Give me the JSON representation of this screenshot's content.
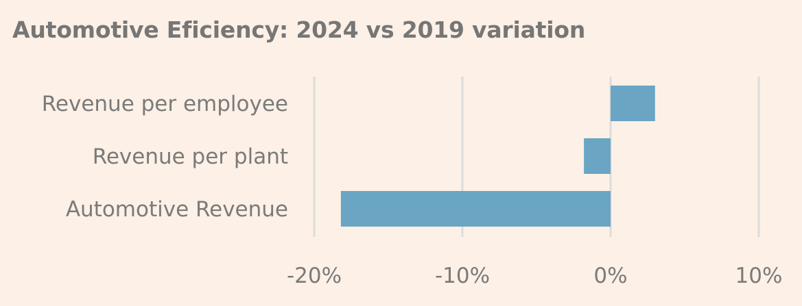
{
  "chart_data": {
    "type": "bar",
    "orientation": "horizontal",
    "title": "Automotive Eficiency: 2024 vs 2019 variation",
    "categories": [
      "Revenue per employee",
      "Revenue per plant",
      "Automotive Revenue"
    ],
    "values": [
      3,
      -1.8,
      -18.2
    ],
    "xlim": [
      -20,
      10
    ],
    "xticks": [
      -20,
      -10,
      0,
      10
    ],
    "xtick_labels": [
      "-20%",
      "-10%",
      "0%",
      "10%"
    ],
    "xlabel": "",
    "ylabel": "",
    "grid": "vertical",
    "legend": "none",
    "bar_color": "#6aa5c4"
  }
}
